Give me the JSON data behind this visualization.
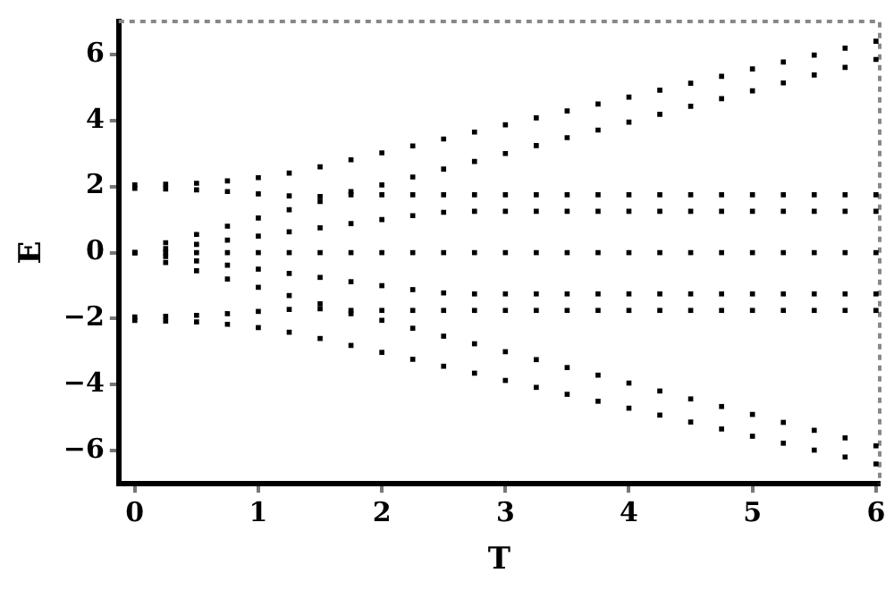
{
  "chart_data": {
    "type": "scatter",
    "xlabel": "T",
    "ylabel": "E",
    "xlim": [
      -0.13,
      6.03
    ],
    "ylim": [
      -7,
      7
    ],
    "xticks": [
      0,
      1,
      2,
      3,
      4,
      5,
      6
    ],
    "yticks": [
      -6,
      -4,
      -2,
      0,
      2,
      4,
      6
    ],
    "grid": false,
    "legend": false,
    "marker": "square",
    "x": [
      0,
      0.25,
      0.5,
      0.75,
      1,
      1.25,
      1.5,
      1.75,
      2,
      2.25,
      2.5,
      2.75,
      3,
      3.25,
      3.5,
      3.75,
      4,
      4.25,
      4.5,
      4.75,
      5,
      5.25,
      5.5,
      5.75,
      6
    ],
    "series": [
      {
        "color": "#000000",
        "values": [
          2.05,
          2.07,
          2.1,
          2.17,
          2.27,
          2.41,
          2.6,
          2.81,
          3.02,
          3.23,
          3.44,
          3.65,
          3.87,
          4.08,
          4.29,
          4.5,
          4.71,
          4.92,
          5.13,
          5.34,
          5.56,
          5.77,
          5.98,
          6.19,
          6.4
        ]
      },
      {
        "color": "#000000",
        "values": [
          1.95,
          1.93,
          1.9,
          1.85,
          1.78,
          1.72,
          1.7,
          1.85,
          2.05,
          2.29,
          2.53,
          2.76,
          3.0,
          3.24,
          3.48,
          3.71,
          3.95,
          4.19,
          4.43,
          4.66,
          4.9,
          5.14,
          5.38,
          5.61,
          5.85
        ]
      },
      {
        "color": "#000000",
        "values": [
          null,
          0.3,
          0.55,
          0.8,
          1.05,
          1.3,
          1.55,
          1.75,
          1.75,
          1.75,
          1.75,
          1.75,
          1.75,
          1.75,
          1.75,
          1.75,
          1.75,
          1.75,
          1.75,
          1.75,
          1.75,
          1.75,
          1.75,
          1.75,
          1.75
        ]
      },
      {
        "color": "#000000",
        "values": [
          0,
          0.12,
          0.25,
          0.38,
          0.5,
          0.63,
          0.75,
          0.88,
          1.0,
          1.12,
          1.22,
          1.25,
          1.25,
          1.25,
          1.25,
          1.25,
          1.25,
          1.25,
          1.25,
          1.25,
          1.25,
          1.25,
          1.25,
          1.25,
          1.25
        ]
      },
      {
        "color": "#000000",
        "values": [
          0,
          0,
          0,
          0,
          0,
          0,
          0,
          0,
          0,
          0,
          0,
          0,
          0,
          0,
          0,
          0,
          0,
          0,
          0,
          0,
          0,
          0,
          0,
          0,
          0
        ]
      },
      {
        "color": "#000000",
        "values": [
          0,
          -0.12,
          -0.25,
          -0.38,
          -0.5,
          -0.63,
          -0.75,
          -0.88,
          -1.0,
          -1.12,
          -1.22,
          -1.25,
          -1.25,
          -1.25,
          -1.25,
          -1.25,
          -1.25,
          -1.25,
          -1.25,
          -1.25,
          -1.25,
          -1.25,
          -1.25,
          -1.25,
          -1.25
        ]
      },
      {
        "color": "#000000",
        "values": [
          null,
          -0.3,
          -0.55,
          -0.8,
          -1.05,
          -1.3,
          -1.55,
          -1.75,
          -1.75,
          -1.75,
          -1.75,
          -1.75,
          -1.75,
          -1.75,
          -1.75,
          -1.75,
          -1.75,
          -1.75,
          -1.75,
          -1.75,
          -1.75,
          -1.75,
          -1.75,
          -1.75,
          -1.75
        ]
      },
      {
        "color": "#000000",
        "values": [
          -1.95,
          -1.93,
          -1.9,
          -1.85,
          -1.78,
          -1.72,
          -1.7,
          -1.85,
          -2.05,
          -2.29,
          -2.53,
          -2.76,
          -3.0,
          -3.24,
          -3.48,
          -3.71,
          -3.95,
          -4.19,
          -4.43,
          -4.66,
          -4.9,
          -5.14,
          -5.38,
          -5.61,
          -5.85
        ]
      },
      {
        "color": "#000000",
        "values": [
          -2.05,
          -2.07,
          -2.1,
          -2.17,
          -2.27,
          -2.41,
          -2.6,
          -2.81,
          -3.02,
          -3.23,
          -3.44,
          -3.65,
          -3.87,
          -4.08,
          -4.29,
          -4.5,
          -4.71,
          -4.92,
          -5.13,
          -5.34,
          -5.56,
          -5.77,
          -5.98,
          -6.19,
          -6.4
        ]
      }
    ]
  }
}
